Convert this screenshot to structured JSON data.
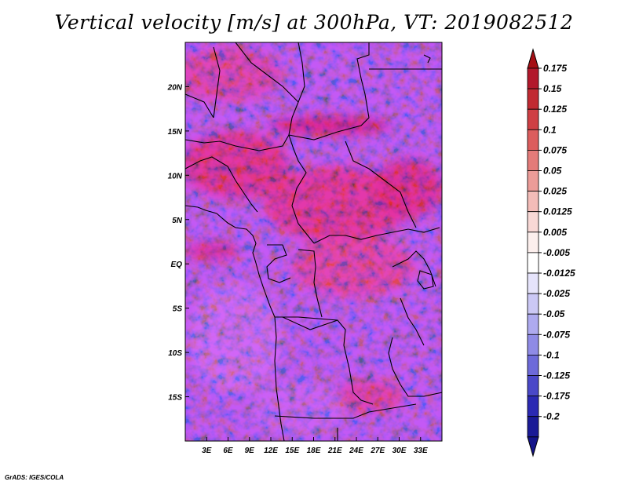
{
  "title": "Vertical velocity [m/s] at 300hPa, VT: 2019082512",
  "credit": "GrADS: IGES/COLA",
  "map": {
    "lat_range": [
      -20,
      25
    ],
    "lon_range": [
      0,
      36
    ],
    "lat_ticks": [
      {
        "v": 20,
        "label": "20N"
      },
      {
        "v": 15,
        "label": "15N"
      },
      {
        "v": 10,
        "label": "10N"
      },
      {
        "v": 5,
        "label": "5N"
      },
      {
        "v": 0,
        "label": "EQ"
      },
      {
        "v": -5,
        "label": "5S"
      },
      {
        "v": -10,
        "label": "10S"
      },
      {
        "v": -15,
        "label": "15S"
      }
    ],
    "lon_ticks": [
      {
        "v": 3,
        "label": "3E"
      },
      {
        "v": 6,
        "label": "6E"
      },
      {
        "v": 9,
        "label": "9E"
      },
      {
        "v": 12,
        "label": "12E"
      },
      {
        "v": 15,
        "label": "15E"
      },
      {
        "v": 18,
        "label": "18E"
      },
      {
        "v": 21,
        "label": "21E"
      },
      {
        "v": 24,
        "label": "24E"
      },
      {
        "v": 27,
        "label": "27E"
      },
      {
        "v": 30,
        "label": "30E"
      },
      {
        "v": 33,
        "label": "33E"
      }
    ]
  },
  "colorbar": {
    "labels": [
      "0.175",
      "0.15",
      "0.125",
      "0.1",
      "0.075",
      "0.05",
      "0.025",
      "0.0125",
      "0.005",
      "-0.005",
      "-0.0125",
      "-0.025",
      "-0.05",
      "-0.075",
      "-0.1",
      "-0.125",
      "-0.175",
      "-0.2"
    ],
    "colors": [
      "#b2182b",
      "#c12a32",
      "#cf3f44",
      "#dc5d5d",
      "#e47b79",
      "#ec9c98",
      "#f3bcb8",
      "#f8d8d5",
      "#fcefed",
      "#ffffff",
      "#e6e4fb",
      "#cbc8f5",
      "#aeaaef",
      "#8f8be6",
      "#6d6ad9",
      "#4a48c8",
      "#2b29b3",
      "#1a1a96"
    ],
    "top_color": "#a50f15",
    "bottom_color": "#14148a"
  }
}
